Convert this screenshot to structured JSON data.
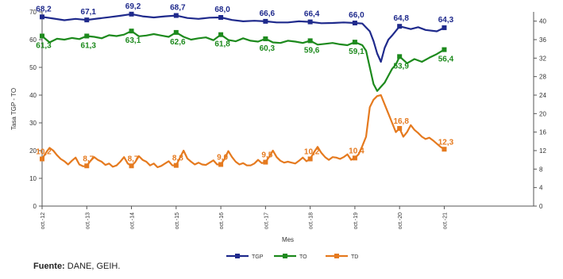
{
  "chart_data": {
    "type": "line",
    "ylabel_left": "Tasa TGP - TO",
    "ylabel_right": "",
    "xlabel": "Mes",
    "ylim_left": [
      0,
      70
    ],
    "yticks_left": [
      "0",
      "10",
      "20",
      "30",
      "40",
      "50",
      "60",
      "70"
    ],
    "ylim_right": [
      0,
      42
    ],
    "yticks_right": [
      "0",
      "4",
      "8",
      "12",
      "16",
      "20",
      "24",
      "28",
      "32",
      "36",
      "40"
    ],
    "x_range": [
      0,
      132
    ],
    "x_ticks": [
      {
        "x": 0,
        "label": "oct.-12"
      },
      {
        "x": 12,
        "label": "oct.-13"
      },
      {
        "x": 24,
        "label": "oct.-14"
      },
      {
        "x": 36,
        "label": "oct.-15"
      },
      {
        "x": 48,
        "label": "oct.-16"
      },
      {
        "x": 60,
        "label": "oct.-17"
      },
      {
        "x": 72,
        "label": "oct.-18"
      },
      {
        "x": 84,
        "label": "oct.-19"
      },
      {
        "x": 96,
        "label": "oct.-20"
      },
      {
        "x": 108,
        "label": "oct.-21"
      }
    ],
    "grid": false,
    "legend": "bottom-center",
    "series": [
      {
        "name": "TGP",
        "axis": "left",
        "color": "#1f2a8c",
        "points": [
          [
            0,
            68.2
          ],
          [
            3,
            67.6
          ],
          [
            6,
            67.0
          ],
          [
            9,
            67.5
          ],
          [
            12,
            67.1
          ],
          [
            15,
            67.6
          ],
          [
            18,
            68.1
          ],
          [
            21,
            68.6
          ],
          [
            24,
            69.2
          ],
          [
            27,
            68.4
          ],
          [
            30,
            68.0
          ],
          [
            33,
            68.4
          ],
          [
            36,
            68.7
          ],
          [
            39,
            67.8
          ],
          [
            42,
            67.5
          ],
          [
            45,
            67.9
          ],
          [
            48,
            68.0
          ],
          [
            51,
            67.1
          ],
          [
            54,
            66.6
          ],
          [
            57,
            66.8
          ],
          [
            60,
            66.6
          ],
          [
            63,
            66.2
          ],
          [
            66,
            66.2
          ],
          [
            69,
            66.6
          ],
          [
            72,
            66.4
          ],
          [
            75,
            65.9
          ],
          [
            78,
            66.0
          ],
          [
            81,
            66.2
          ],
          [
            84,
            66.0
          ],
          [
            86,
            65.8
          ],
          [
            88,
            63.0
          ],
          [
            89,
            59.5
          ],
          [
            90,
            55.0
          ],
          [
            91,
            52.0
          ],
          [
            92,
            57.0
          ],
          [
            93,
            60.0
          ],
          [
            94,
            61.5
          ],
          [
            96,
            64.8
          ],
          [
            99,
            63.8
          ],
          [
            101,
            64.5
          ],
          [
            103,
            63.5
          ],
          [
            106,
            63.0
          ],
          [
            108,
            64.3
          ]
        ],
        "labels": [
          [
            0,
            "68,2"
          ],
          [
            12,
            "67,1"
          ],
          [
            24,
            "69,2"
          ],
          [
            36,
            "68,7"
          ],
          [
            48,
            "68,0"
          ],
          [
            60,
            "66,6"
          ],
          [
            72,
            "66,4"
          ],
          [
            84,
            "66,0"
          ],
          [
            96,
            "64,8"
          ],
          [
            108,
            "64,3"
          ]
        ]
      },
      {
        "name": "TO",
        "axis": "left",
        "color": "#1d8a1d",
        "points": [
          [
            0,
            61.3
          ],
          [
            2,
            59.0
          ],
          [
            4,
            60.3
          ],
          [
            6,
            60.0
          ],
          [
            8,
            60.6
          ],
          [
            10,
            60.2
          ],
          [
            12,
            61.3
          ],
          [
            14,
            61.0
          ],
          [
            16,
            60.5
          ],
          [
            18,
            61.6
          ],
          [
            20,
            61.3
          ],
          [
            22,
            61.8
          ],
          [
            24,
            63.1
          ],
          [
            26,
            61.2
          ],
          [
            28,
            61.5
          ],
          [
            30,
            62.0
          ],
          [
            32,
            61.5
          ],
          [
            34,
            61.0
          ],
          [
            36,
            62.6
          ],
          [
            38,
            61.0
          ],
          [
            40,
            60.0
          ],
          [
            42,
            60.5
          ],
          [
            44,
            60.8
          ],
          [
            46,
            59.8
          ],
          [
            48,
            61.8
          ],
          [
            50,
            59.9
          ],
          [
            52,
            59.4
          ],
          [
            54,
            60.5
          ],
          [
            56,
            59.6
          ],
          [
            58,
            59.3
          ],
          [
            60,
            60.3
          ],
          [
            62,
            59.0
          ],
          [
            64,
            58.8
          ],
          [
            66,
            59.6
          ],
          [
            68,
            59.3
          ],
          [
            70,
            58.8
          ],
          [
            72,
            59.6
          ],
          [
            74,
            58.2
          ],
          [
            76,
            58.5
          ],
          [
            78,
            58.8
          ],
          [
            80,
            58.3
          ],
          [
            82,
            58.0
          ],
          [
            84,
            59.1
          ],
          [
            86,
            58.0
          ],
          [
            87,
            56.0
          ],
          [
            88,
            50.0
          ],
          [
            89,
            44.0
          ],
          [
            90,
            41.5
          ],
          [
            91,
            43.0
          ],
          [
            92,
            44.5
          ],
          [
            93,
            47.0
          ],
          [
            94,
            49.5
          ],
          [
            95,
            51.0
          ],
          [
            96,
            53.9
          ],
          [
            98,
            51.5
          ],
          [
            100,
            53.0
          ],
          [
            102,
            52.0
          ],
          [
            104,
            53.5
          ],
          [
            106,
            54.8
          ],
          [
            108,
            56.4
          ]
        ],
        "labels": [
          [
            0,
            "61,3"
          ],
          [
            12,
            "61,3"
          ],
          [
            24,
            "63,1"
          ],
          [
            36,
            "62,6"
          ],
          [
            48,
            "61,8"
          ],
          [
            60,
            "60,3"
          ],
          [
            72,
            "59,6"
          ],
          [
            84,
            "59,1"
          ],
          [
            96,
            "53,9"
          ],
          [
            108,
            "56,4"
          ]
        ]
      },
      {
        "name": "TD",
        "axis": "right",
        "color": "#e57a1f",
        "points": [
          [
            0,
            10.2
          ],
          [
            1,
            11.5
          ],
          [
            2,
            12.6
          ],
          [
            3,
            12.0
          ],
          [
            4,
            11.0
          ],
          [
            5,
            10.2
          ],
          [
            6,
            9.7
          ],
          [
            7,
            9.0
          ],
          [
            8,
            9.8
          ],
          [
            9,
            10.5
          ],
          [
            10,
            9.0
          ],
          [
            11,
            8.6
          ],
          [
            12,
            8.7
          ],
          [
            13,
            9.8
          ],
          [
            14,
            10.6
          ],
          [
            15,
            10.0
          ],
          [
            16,
            9.6
          ],
          [
            17,
            8.9
          ],
          [
            18,
            9.2
          ],
          [
            19,
            8.5
          ],
          [
            20,
            8.8
          ],
          [
            21,
            9.6
          ],
          [
            22,
            10.6
          ],
          [
            23,
            9.2
          ],
          [
            24,
            8.7
          ],
          [
            25,
            9.5
          ],
          [
            26,
            10.8
          ],
          [
            27,
            10.0
          ],
          [
            28,
            9.6
          ],
          [
            29,
            8.8
          ],
          [
            30,
            9.2
          ],
          [
            31,
            8.4
          ],
          [
            32,
            8.7
          ],
          [
            33,
            9.2
          ],
          [
            34,
            9.7
          ],
          [
            35,
            8.8
          ],
          [
            36,
            8.8
          ],
          [
            37,
            10.4
          ],
          [
            38,
            12.0
          ],
          [
            39,
            10.3
          ],
          [
            40,
            9.6
          ],
          [
            41,
            9.0
          ],
          [
            42,
            9.4
          ],
          [
            43,
            9.0
          ],
          [
            44,
            8.9
          ],
          [
            45,
            9.4
          ],
          [
            46,
            9.9
          ],
          [
            47,
            9.0
          ],
          [
            48,
            9.0
          ],
          [
            49,
            10.2
          ],
          [
            50,
            11.9
          ],
          [
            51,
            10.6
          ],
          [
            52,
            9.6
          ],
          [
            53,
            9.0
          ],
          [
            54,
            9.3
          ],
          [
            55,
            8.8
          ],
          [
            56,
            8.8
          ],
          [
            57,
            9.2
          ],
          [
            58,
            10.0
          ],
          [
            59,
            9.3
          ],
          [
            60,
            9.5
          ],
          [
            61,
            10.7
          ],
          [
            62,
            12.0
          ],
          [
            63,
            10.6
          ],
          [
            64,
            9.8
          ],
          [
            65,
            9.4
          ],
          [
            66,
            9.6
          ],
          [
            67,
            9.4
          ],
          [
            68,
            9.2
          ],
          [
            69,
            9.8
          ],
          [
            70,
            10.5
          ],
          [
            71,
            9.7
          ],
          [
            72,
            10.2
          ],
          [
            73,
            11.6
          ],
          [
            74,
            12.8
          ],
          [
            75,
            11.5
          ],
          [
            76,
            10.6
          ],
          [
            77,
            10.0
          ],
          [
            78,
            10.6
          ],
          [
            79,
            10.5
          ],
          [
            80,
            10.2
          ],
          [
            81,
            10.6
          ],
          [
            82,
            11.2
          ],
          [
            83,
            10.0
          ],
          [
            84,
            10.4
          ],
          [
            85,
            11.2
          ],
          [
            86,
            13.0
          ],
          [
            87,
            15.0
          ],
          [
            88,
            21.4
          ],
          [
            89,
            23.0
          ],
          [
            90,
            23.8
          ],
          [
            91,
            24.0
          ],
          [
            92,
            22.0
          ],
          [
            93,
            20.0
          ],
          [
            94,
            18.0
          ],
          [
            95,
            16.0
          ],
          [
            96,
            16.8
          ],
          [
            97,
            15.0
          ],
          [
            98,
            16.0
          ],
          [
            99,
            17.5
          ],
          [
            100,
            16.5
          ],
          [
            101,
            15.8
          ],
          [
            102,
            15.0
          ],
          [
            103,
            14.5
          ],
          [
            104,
            14.8
          ],
          [
            105,
            14.2
          ],
          [
            106,
            13.5
          ],
          [
            107,
            12.8
          ],
          [
            108,
            12.3
          ]
        ],
        "labels": [
          [
            0,
            "10,2"
          ],
          [
            12,
            "8,7"
          ],
          [
            24,
            "8,7"
          ],
          [
            36,
            "8,8"
          ],
          [
            48,
            "9,0"
          ],
          [
            60,
            "9,5"
          ],
          [
            72,
            "10,2"
          ],
          [
            84,
            "10,4"
          ],
          [
            96,
            "16,8"
          ],
          [
            108,
            "12,3"
          ]
        ]
      }
    ]
  },
  "footer": {
    "source_label": "Fuente:",
    "source_text": "DANE, GEIH."
  }
}
